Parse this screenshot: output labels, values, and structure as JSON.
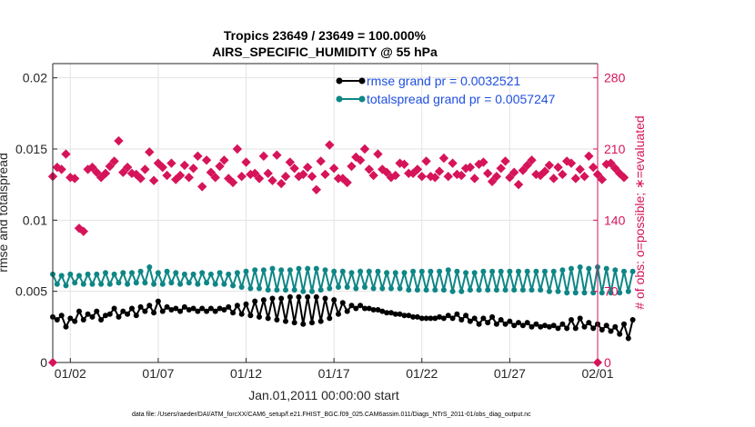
{
  "chart_data": {
    "type": "line",
    "title": "Tropics 23649 / 23649 = 100.000%",
    "subtitle": "AIRS_SPECIFIC_HUMIDITY @ 55 hPa",
    "xlabel": "Jan.01,2011 00:00:00 start",
    "ylabel_left": "rmse and totalspread",
    "ylabel_right": "# of obs: o=possible; ∗=evaluated",
    "xlim": [
      0,
      31.0
    ],
    "ylim_left": [
      0,
      0.021
    ],
    "ylim_right": [
      0,
      294
    ],
    "x_ticks": [
      1,
      6,
      11,
      16,
      21,
      26,
      31
    ],
    "x_tick_labels": [
      "01/02",
      "01/07",
      "01/12",
      "01/17",
      "01/22",
      "01/27",
      "02/01"
    ],
    "y_left_ticks": [
      0,
      0.005,
      0.01,
      0.015,
      0.02
    ],
    "y_left_tick_labels": [
      "0",
      "0.005",
      "0.01",
      "0.015",
      "0.02"
    ],
    "y_right_ticks": [
      0,
      70,
      140,
      210,
      280
    ],
    "y_right_tick_labels": [
      "0",
      "70",
      "140",
      "210",
      "280"
    ],
    "colors": {
      "rmse": "#000000",
      "totalspread": "#0f8686",
      "obs": "#d6145a",
      "axis_right": "#d6145a",
      "legend_text": "#1f4fe0",
      "grid": "#e3e3e3"
    },
    "legend": [
      {
        "name": "rmse grand pr = 0.0032521",
        "color": "#000000"
      },
      {
        "name": "totalspread grand pr = 0.0057247",
        "color": "#0f8686"
      }
    ],
    "series": [
      {
        "name": "rmse",
        "color": "#000000",
        "x_start": 0.0,
        "x_step": 0.25,
        "values": [
          0.0032,
          0.003,
          0.0033,
          0.0025,
          0.0031,
          0.0029,
          0.0036,
          0.003,
          0.0034,
          0.0032,
          0.0036,
          0.003,
          0.0033,
          0.0034,
          0.0038,
          0.0032,
          0.0036,
          0.0034,
          0.0038,
          0.0033,
          0.0039,
          0.0036,
          0.004,
          0.0035,
          0.0043,
          0.0036,
          0.0039,
          0.0037,
          0.0038,
          0.0036,
          0.0039,
          0.0037,
          0.0038,
          0.0036,
          0.0038,
          0.0036,
          0.0038,
          0.0036,
          0.0038,
          0.0037,
          0.0039,
          0.0035,
          0.004,
          0.0034,
          0.0041,
          0.0033,
          0.0043,
          0.0032,
          0.0044,
          0.0031,
          0.0045,
          0.003,
          0.0045,
          0.0029,
          0.0046,
          0.0028,
          0.0046,
          0.0027,
          0.0046,
          0.0028,
          0.0046,
          0.0029,
          0.0045,
          0.0031,
          0.0044,
          0.0034,
          0.0042,
          0.0036,
          0.004,
          0.0038,
          0.004,
          0.0038,
          0.0038,
          0.0037,
          0.0037,
          0.0036,
          0.0035,
          0.0035,
          0.0034,
          0.0034,
          0.0033,
          0.0033,
          0.0032,
          0.0032,
          0.0031,
          0.0031,
          0.0031,
          0.0031,
          0.0032,
          0.0031,
          0.0033,
          0.0031,
          0.0034,
          0.003,
          0.0033,
          0.0029,
          0.0031,
          0.0027,
          0.0031,
          0.0028,
          0.0032,
          0.0027,
          0.003,
          0.0027,
          0.0029,
          0.0026,
          0.0028,
          0.0026,
          0.0028,
          0.0025,
          0.0027,
          0.0025,
          0.0026,
          0.0025,
          0.0026,
          0.0024,
          0.0027,
          0.0024,
          0.003,
          0.0024,
          0.0031,
          0.0025,
          0.0028,
          0.0024,
          0.0027,
          0.0023,
          0.0026,
          0.0022,
          0.0025,
          0.002,
          0.0027,
          0.0017,
          0.003
        ]
      },
      {
        "name": "totalspread",
        "color": "#0f8686",
        "x_start": 0.0,
        "x_step": 0.25,
        "values": [
          0.0062,
          0.0055,
          0.0061,
          0.0054,
          0.0062,
          0.0056,
          0.0061,
          0.0055,
          0.0062,
          0.0055,
          0.0062,
          0.0055,
          0.0063,
          0.0055,
          0.0062,
          0.0056,
          0.0063,
          0.0055,
          0.0063,
          0.0056,
          0.0064,
          0.0056,
          0.0067,
          0.0055,
          0.0063,
          0.0055,
          0.0064,
          0.0056,
          0.0063,
          0.0055,
          0.0062,
          0.0056,
          0.0062,
          0.0055,
          0.0063,
          0.0056,
          0.0062,
          0.0055,
          0.0063,
          0.0055,
          0.0062,
          0.0054,
          0.0063,
          0.0053,
          0.0064,
          0.0052,
          0.0065,
          0.0052,
          0.0065,
          0.0051,
          0.0066,
          0.0051,
          0.0065,
          0.0051,
          0.0065,
          0.0051,
          0.0066,
          0.005,
          0.0066,
          0.005,
          0.0066,
          0.0051,
          0.0065,
          0.0052,
          0.0064,
          0.0053,
          0.0064,
          0.0053,
          0.0063,
          0.0052,
          0.0064,
          0.0053,
          0.0064,
          0.0052,
          0.0064,
          0.0052,
          0.0063,
          0.0052,
          0.0063,
          0.0052,
          0.0063,
          0.0051,
          0.0064,
          0.0051,
          0.0064,
          0.0051,
          0.0064,
          0.0051,
          0.0064,
          0.0051,
          0.0065,
          0.005,
          0.0064,
          0.005,
          0.0063,
          0.0051,
          0.0063,
          0.0051,
          0.0064,
          0.0051,
          0.0064,
          0.0051,
          0.0064,
          0.0051,
          0.0064,
          0.0051,
          0.0064,
          0.0051,
          0.0064,
          0.0051,
          0.0064,
          0.0051,
          0.0064,
          0.005,
          0.0064,
          0.005,
          0.0065,
          0.0049,
          0.0066,
          0.0049,
          0.0067,
          0.0049,
          0.0066,
          0.0049,
          0.0067,
          0.0049,
          0.0066,
          0.0049,
          0.0065,
          0.0049,
          0.0064,
          0.005,
          0.0064
        ]
      },
      {
        "name": "obs evaluated",
        "axis": "right",
        "color": "#d6145a",
        "marker": "star",
        "x_start": 0.0,
        "x_step": 0.25,
        "values": [
          183,
          192,
          190,
          205,
          182,
          181,
          132,
          129,
          190,
          192,
          187,
          182,
          186,
          193,
          198,
          218,
          187,
          192,
          186,
          185,
          181,
          190,
          207,
          179,
          196,
          192,
          184,
          196,
          180,
          184,
          194,
          182,
          191,
          203,
          173,
          199,
          187,
          182,
          193,
          199,
          181,
          177,
          210,
          183,
          197,
          185,
          186,
          181,
          203,
          186,
          179,
          204,
          176,
          183,
          197,
          191,
          183,
          185,
          192,
          183,
          170,
          198,
          185,
          214,
          191,
          181,
          181,
          177,
          193,
          202,
          199,
          210,
          190,
          184,
          205,
          190,
          187,
          182,
          184,
          196,
          195,
          186,
          186,
          190,
          183,
          198,
          183,
          182,
          188,
          201,
          183,
          196,
          185,
          184,
          191,
          192,
          181,
          195,
          197,
          186,
          178,
          183,
          191,
          198,
          182,
          187,
          175,
          189,
          194,
          199,
          185,
          184,
          188,
          194,
          181,
          192,
          185,
          198,
          196,
          181,
          190,
          183,
          203,
          192,
          185,
          180,
          195,
          196,
          191,
          186,
          182
        ]
      }
    ]
  },
  "footer": "data file: /Users/raeder/DAI/ATM_forcXX/CAM6_setup/f.e21.FHIST_BGC.f09_025.CAM6assim.011/Diags_NTrS_2011-01/obs_diag_output.nc"
}
